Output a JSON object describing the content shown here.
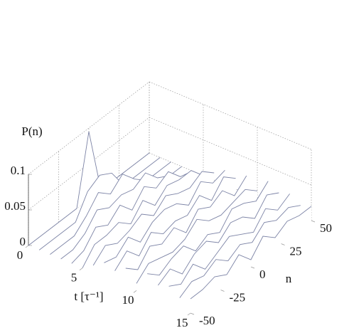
{
  "chart_data": {
    "type": "waterfall3d",
    "zlabel": "P(n)",
    "xlabel": "t [τ⁻¹]",
    "ylabel": "n",
    "x": [
      0,
      1,
      2,
      3,
      4,
      5,
      6,
      7,
      8,
      9,
      10,
      11,
      12,
      13,
      14,
      15
    ],
    "y": [
      -50,
      -40,
      -30,
      -20,
      -10,
      0,
      10,
      20,
      30,
      40,
      50
    ],
    "values": [
      [
        0,
        0,
        0,
        0,
        0,
        0.095,
        0,
        0,
        0,
        0,
        0
      ],
      [
        0,
        0,
        0,
        0,
        0.03,
        0.04,
        0.03,
        0,
        0,
        0,
        0
      ],
      [
        0,
        0,
        0,
        0.015,
        0.035,
        0.02,
        0.035,
        0.015,
        0,
        0,
        0
      ],
      [
        0,
        0,
        0.01,
        0.03,
        0.02,
        0.025,
        0.02,
        0.03,
        0.01,
        0,
        0
      ],
      [
        0,
        0.005,
        0.025,
        0.015,
        0.03,
        0.01,
        0.03,
        0.015,
        0.025,
        0.005,
        0
      ],
      [
        0,
        0.02,
        0.02,
        0.025,
        0.01,
        0.03,
        0.01,
        0.025,
        0.02,
        0.02,
        0
      ],
      [
        0.01,
        0.025,
        0.015,
        0.02,
        0.03,
        0.015,
        0.03,
        0.02,
        0.015,
        0.025,
        0.01
      ],
      [
        0.02,
        0.015,
        0.03,
        0.01,
        0.025,
        0.03,
        0.025,
        0.01,
        0.03,
        0.015,
        0.02
      ],
      [
        0.015,
        0.03,
        0.01,
        0.03,
        0.015,
        0.02,
        0.015,
        0.03,
        0.01,
        0.03,
        0.015
      ],
      [
        0.025,
        0.01,
        0.03,
        0.02,
        0.03,
        0.01,
        0.03,
        0.02,
        0.03,
        0.01,
        0.025
      ],
      [
        0.01,
        0.025,
        0.02,
        0.015,
        0.02,
        0.035,
        0.02,
        0.015,
        0.02,
        0.025,
        0.01
      ],
      [
        0.03,
        0.015,
        0.025,
        0.03,
        0.01,
        0.02,
        0.01,
        0.03,
        0.025,
        0.015,
        0.03
      ],
      [
        0.02,
        0.03,
        0.01,
        0.025,
        0.03,
        0.015,
        0.03,
        0.025,
        0.01,
        0.03,
        0.02
      ],
      [
        0.025,
        0.015,
        0.03,
        0.01,
        0.02,
        0.03,
        0.02,
        0.01,
        0.03,
        0.015,
        0.025
      ],
      [
        0.015,
        0.025,
        0.02,
        0.03,
        0.015,
        0.025,
        0.015,
        0.03,
        0.02,
        0.025,
        0.015
      ],
      [
        0.02,
        0.02,
        0.025,
        0.015,
        0.03,
        0.01,
        0.03,
        0.015,
        0.025,
        0.02,
        0.02
      ]
    ],
    "color": "#7d84a6",
    "xlim": [
      0,
      15
    ],
    "ylim": [
      -50,
      50
    ],
    "zlim": [
      0,
      0.1
    ],
    "xticks": [
      0,
      5,
      10,
      15
    ],
    "yticks": [
      -50,
      -25,
      0,
      25,
      50
    ],
    "zticks": [
      0,
      0.05,
      0.1
    ],
    "grid": true
  }
}
